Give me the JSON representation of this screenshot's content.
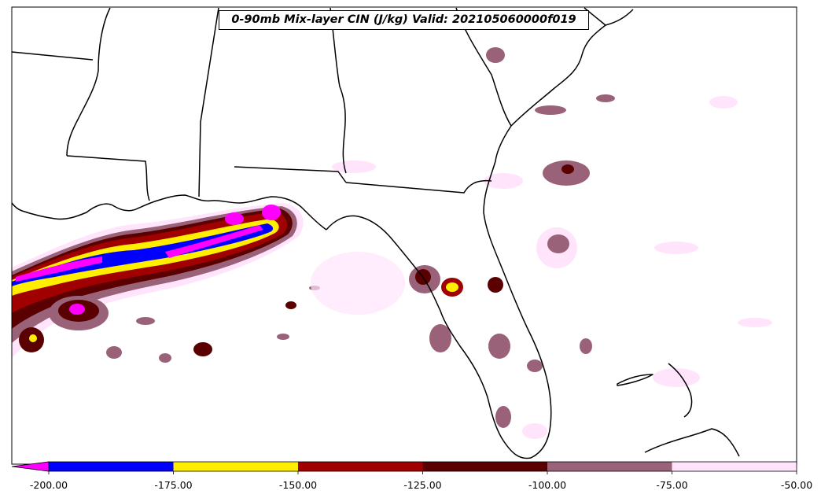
{
  "map": {
    "title": "0-90mb Mix-layer CIN (J/kg) Valid: 202105060000f019"
  },
  "colorbar": {
    "extend": "min",
    "ticks": [
      "-200.00",
      "-175.00",
      "-150.00",
      "-125.00",
      "-100.00",
      "-75.00",
      "-50.00"
    ],
    "under_color": "#ff00ff",
    "bins": [
      {
        "from": -200,
        "to": -175,
        "color": "#0000ff"
      },
      {
        "from": -175,
        "to": -150,
        "color": "#ffee00"
      },
      {
        "from": -150,
        "to": -125,
        "color": "#a00000"
      },
      {
        "from": -125,
        "to": -100,
        "color": "#5a0000"
      },
      {
        "from": -100,
        "to": -75,
        "color": "#9a6278"
      },
      {
        "from": -75,
        "to": -50,
        "color": "#ffe4fb"
      }
    ]
  }
}
